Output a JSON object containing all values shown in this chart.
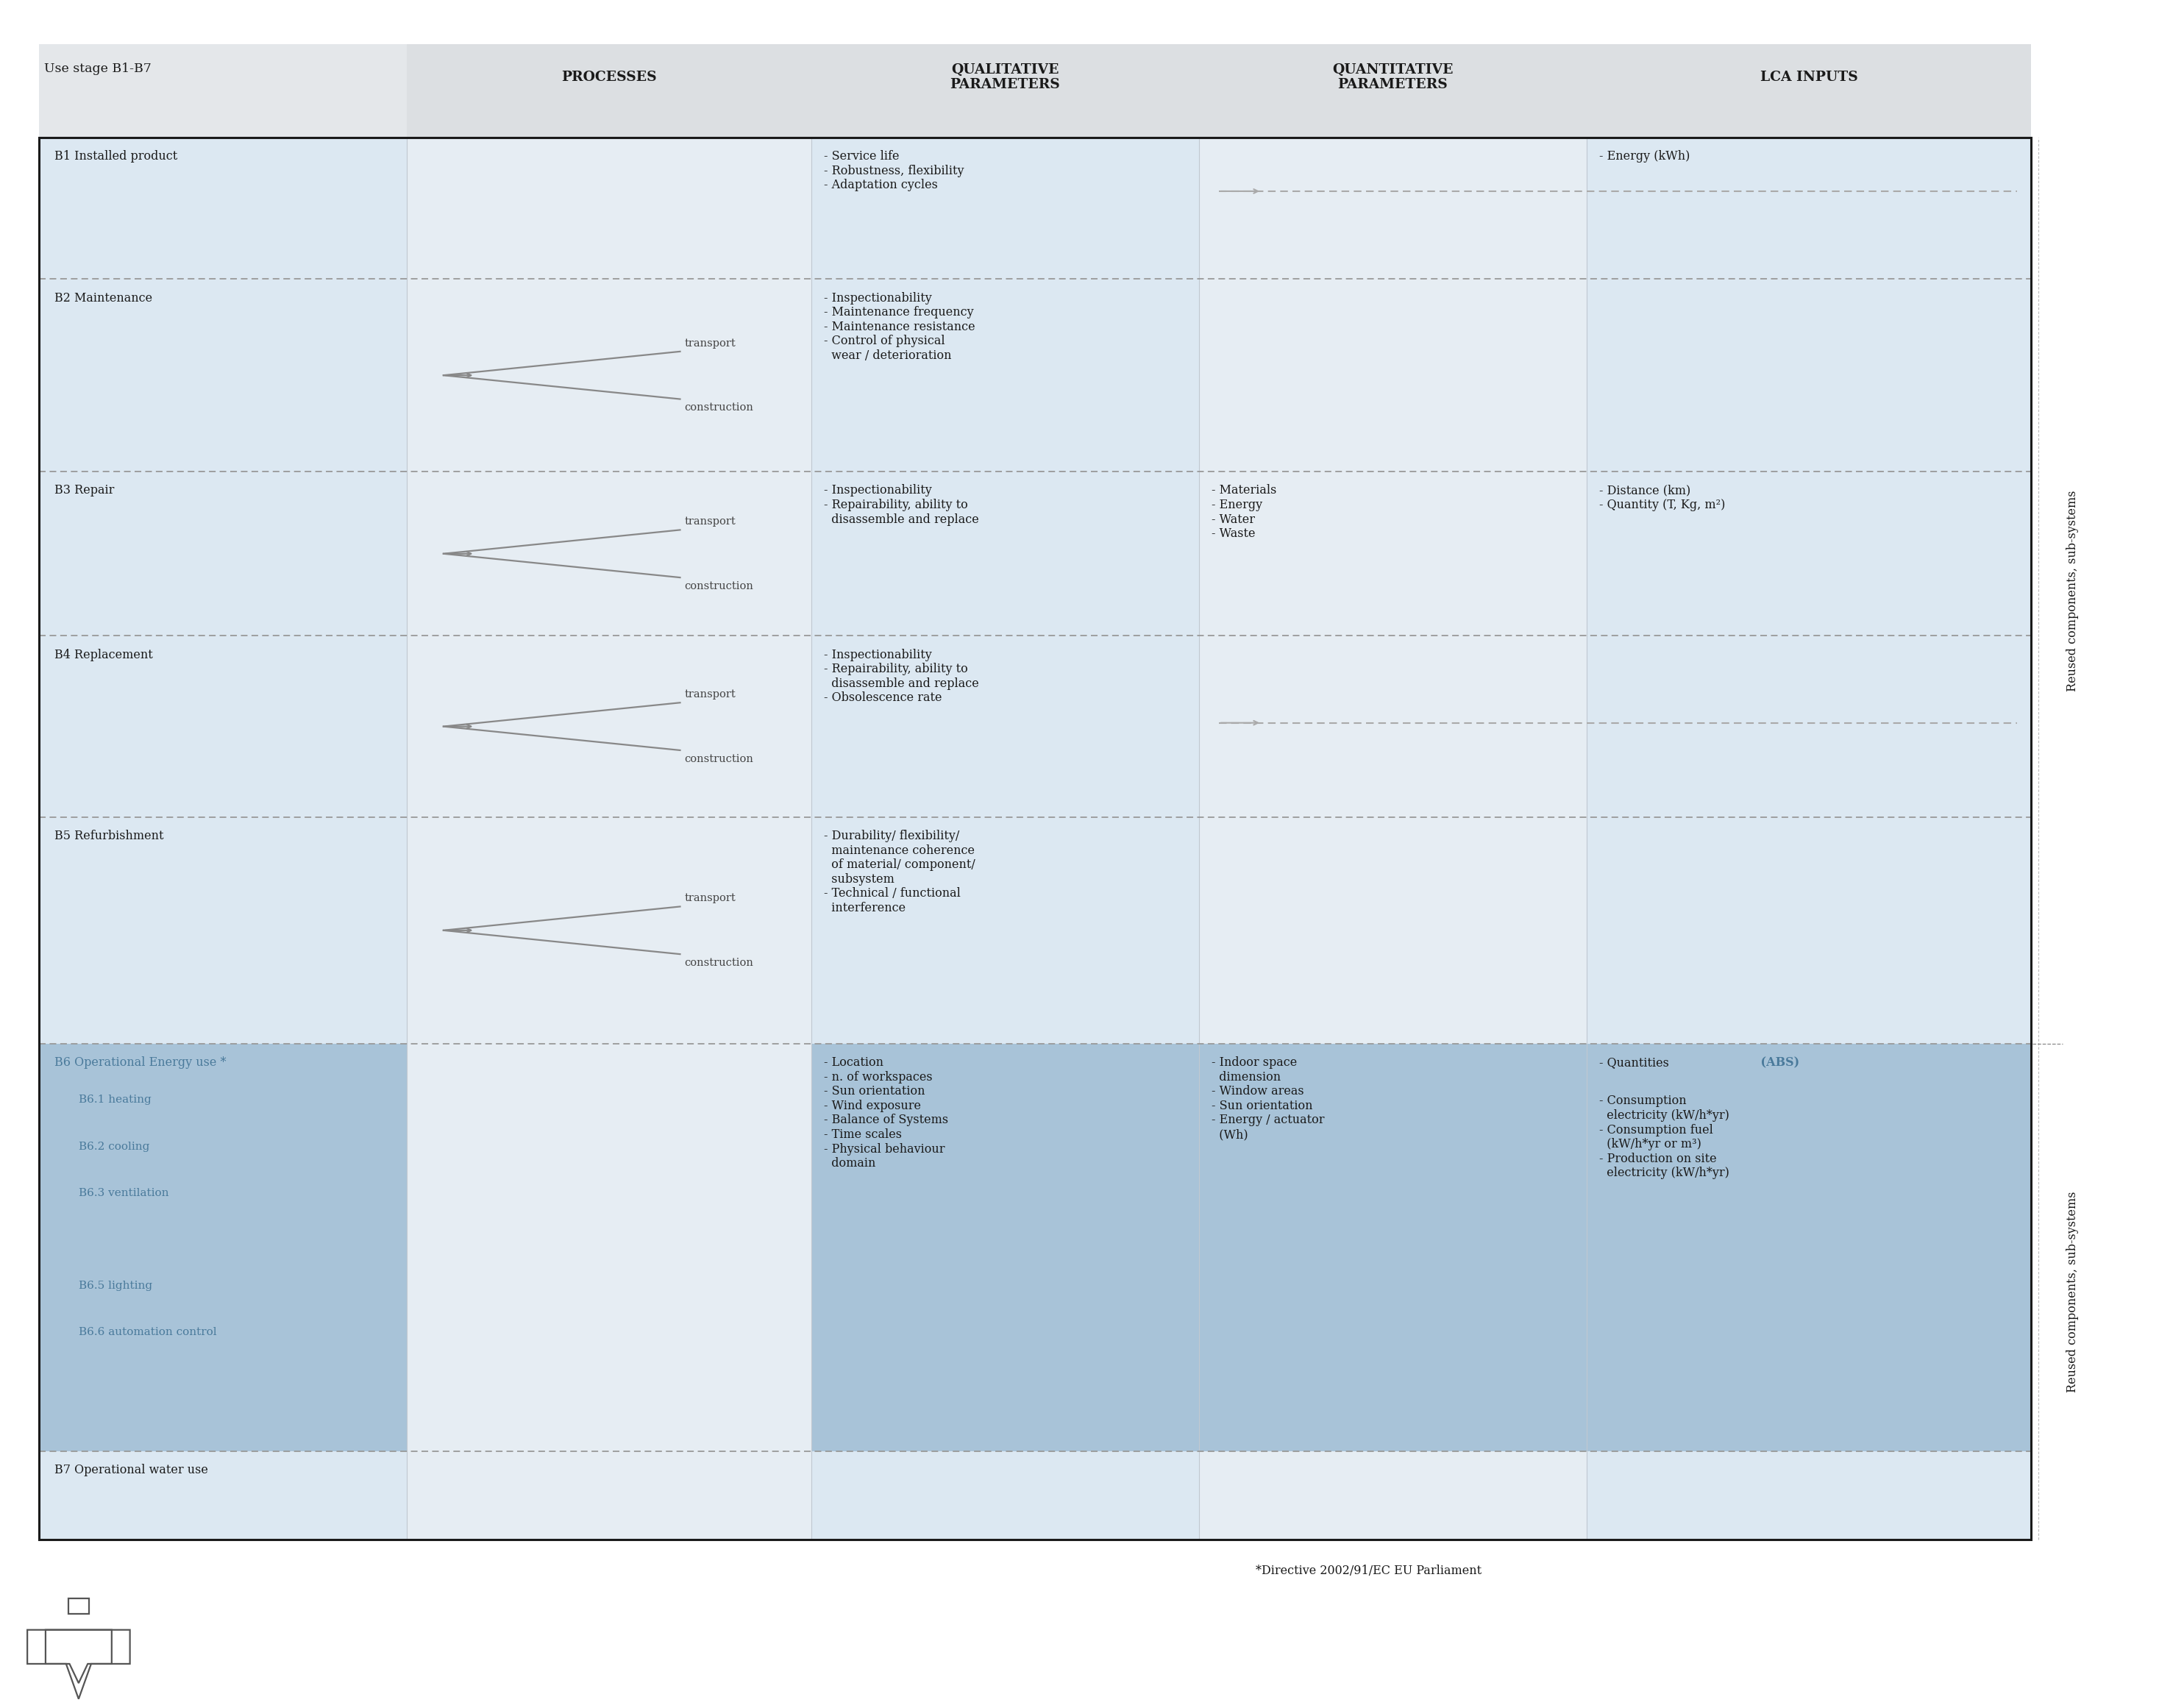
{
  "title": "",
  "bg_color": "#ffffff",
  "header_bg": "#e8e8e8",
  "light_blue_bg": "#dce8f0",
  "b6_bg": "#a8c3d8",
  "b6_text_color": "#3a5a7a",
  "arrow_color": "#888888",
  "border_color": "#333333",
  "dashed_color": "#aaaaaa",
  "header_row": {
    "col1": "Use stage B1-B7",
    "col2": "PROCESSES",
    "col3": "QUALITATIVE\nPARAMETERS",
    "col4": "QUANTITATIVE\nPARAMETERS",
    "col5": "LCA INPUTS"
  },
  "rows": [
    {
      "id": "B1",
      "label": "B1 Installed product",
      "qualitative": "- Service life\n- Robustness, flexibility\n- Adaptation cycles",
      "quantitative": "",
      "lca": "- Energy (kWh)",
      "has_horiz_arrow": true,
      "bg": "light"
    },
    {
      "id": "B2",
      "label": "B2 Maintenance",
      "qualitative": "- Inspectionability\n- Maintenance frequency\n- Maintenance resistance\n- Control of physical\n  wear / deterioration",
      "quantitative": "",
      "lca": "",
      "has_horiz_arrow": false,
      "bg": "light"
    },
    {
      "id": "B3",
      "label": "B3 Repair",
      "qualitative": "- Inspectionability\n- Repairability, ability to\n  disassemble and replace",
      "quantitative": "- Materials\n- Energy\n- Water\n- Waste",
      "lca": "- Distance (km)\n- Quantity (T, Kg, m²)",
      "has_horiz_arrow": false,
      "bg": "light"
    },
    {
      "id": "B4",
      "label": "B4 Replacement",
      "qualitative": "- Inspectionability\n- Repairability, ability to\n  disassemble and replace\n- Obsolescence rate",
      "quantitative": "",
      "lca": "",
      "has_horiz_arrow": true,
      "bg": "light"
    },
    {
      "id": "B5",
      "label": "B5 Refurbishment",
      "qualitative": "- Durability/ flexibility/\n  maintenance coherence\n  of material/ component/\n  subsystem\n- Technical / functional\n  interference",
      "quantitative": "",
      "lca": "",
      "has_horiz_arrow": false,
      "bg": "light"
    },
    {
      "id": "B6",
      "label": "B6 Operational Energy use *",
      "sub_labels": [
        "B6.1 heating",
        "B6.2 cooling",
        "B6.3 ventilation",
        "",
        "B6.5 lighting",
        "B6.6 automation control"
      ],
      "qualitative": "- Location\n- n. of workspaces\n- Sun orientation\n- Wind exposure\n- Balance of Systems\n- Time scales\n- Physical behaviour\n  domain",
      "quantitative": "- Indoor space\n  dimension\n- Window areas\n- Sun orientation\n- Energy / actuator\n  (Wh)",
      "lca_line1": "- Quantities",
      "lca_abs": "    (ABS)",
      "lca_rest": "- Consumption\n  electricity (kW/h*yr)\n- Consumption fuel\n  (kW/h*yr or m³)\n- Production on site\n  electricity (kW/h*yr)",
      "has_horiz_arrow": false,
      "bg": "blue"
    },
    {
      "id": "B7",
      "label": "B7 Operational water use",
      "qualitative": "",
      "quantitative": "",
      "lca": "",
      "has_horiz_arrow": false,
      "bg": "light"
    }
  ],
  "right_label_top": "Reused components, sub-systems",
  "right_label_bottom": "Reused components, sub-systems",
  "footnote": "*Directive 2002/91/EC EU Parliament"
}
